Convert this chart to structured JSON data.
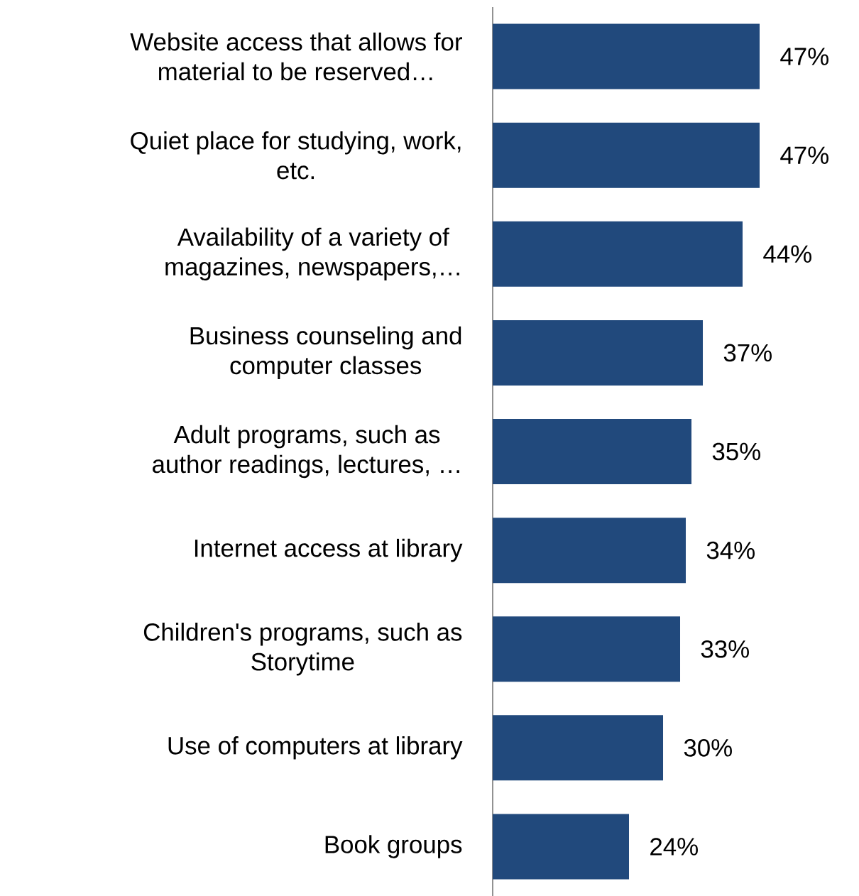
{
  "chart_data": {
    "type": "bar",
    "orientation": "horizontal",
    "categories": [
      "Website access that allows for material to be reserved…",
      "Quiet place for studying, work, etc.",
      "Availability of a variety of magazines, newspapers,…",
      "Business counseling and computer classes",
      "Adult programs, such as author readings, lectures, …",
      "Internet access at library",
      "Children's programs, such as Storytime",
      "Use of computers at library",
      "Book groups"
    ],
    "values": [
      47,
      47,
      44,
      37,
      35,
      34,
      33,
      30,
      24
    ],
    "value_labels": [
      "47%",
      "47%",
      "44%",
      "37%",
      "35%",
      "34%",
      "33%",
      "30%",
      "24%"
    ],
    "color": "#21497c"
  }
}
